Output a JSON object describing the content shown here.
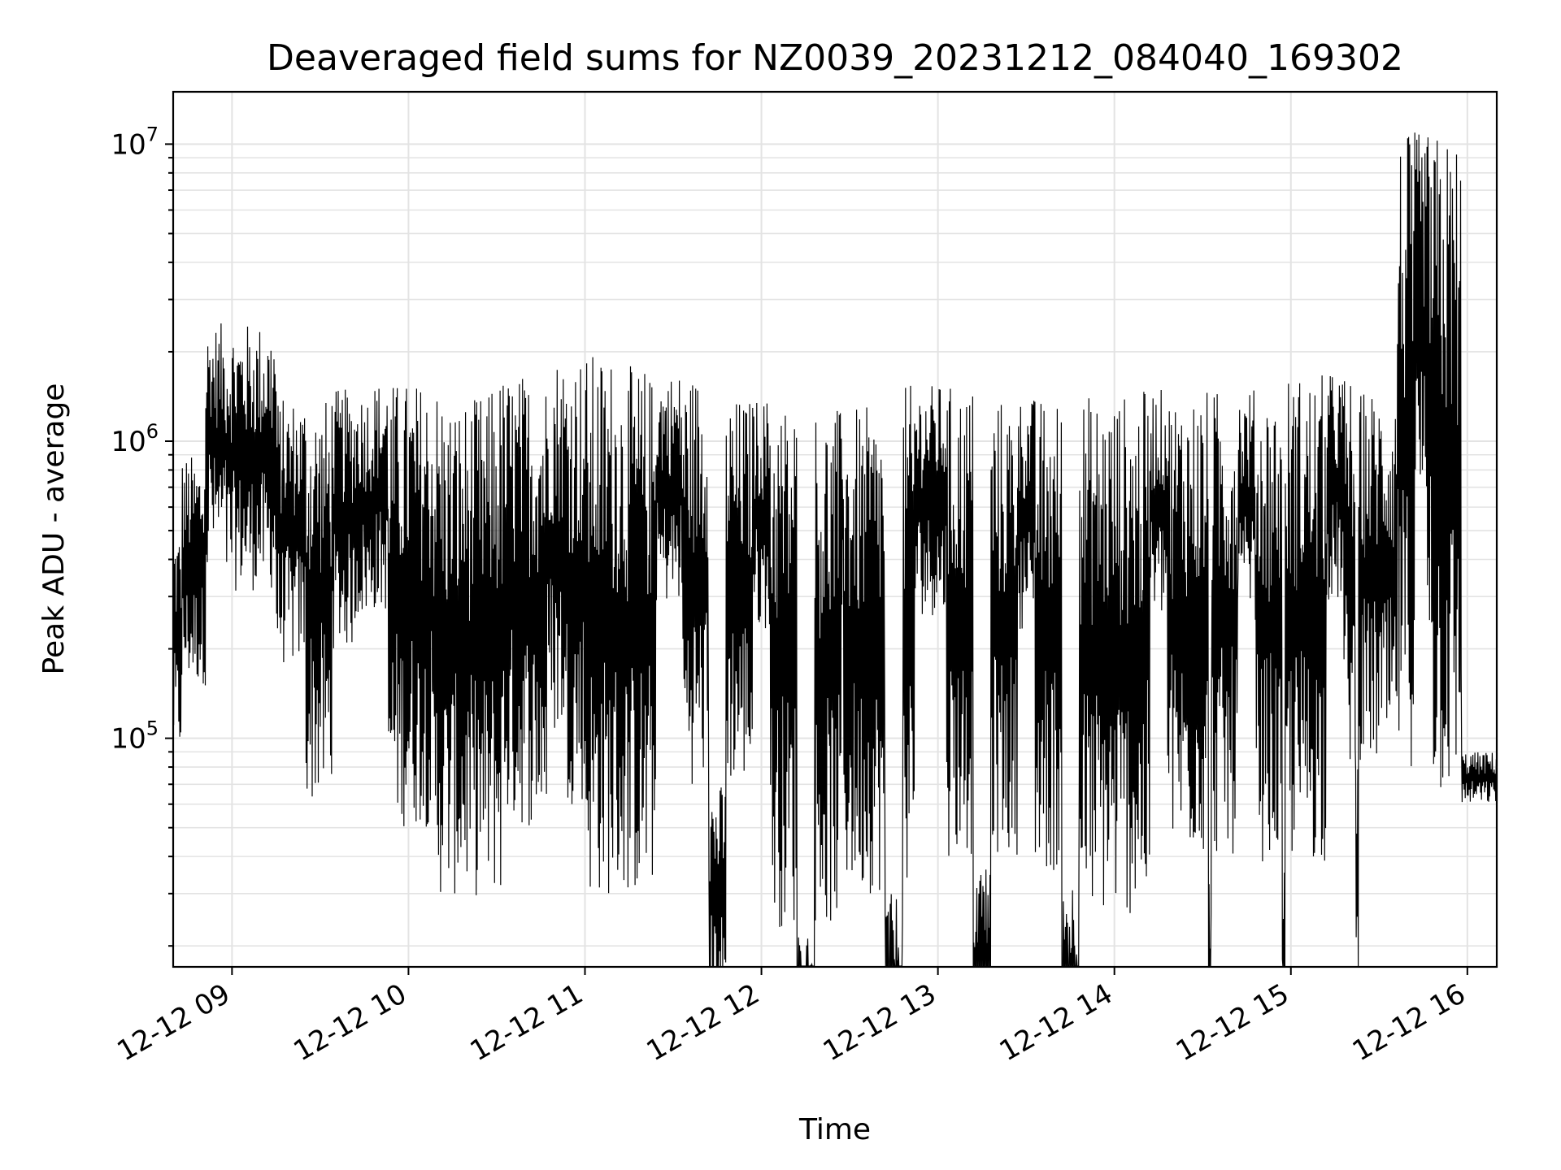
{
  "chart_data": {
    "type": "line",
    "title": "Deaveraged field sums for NZ0039_20231212_084040_169302",
    "xlabel": "Time",
    "ylabel": "Peak ADU - average",
    "yscale": "log",
    "ylim": [
      17000,
      15000000
    ],
    "xlim": [
      "2023-12-12 08:40",
      "2023-12-12 16:10"
    ],
    "grid": true,
    "line_color": "#000000",
    "x_tick_labels": [
      "12-12 09",
      "12-12 10",
      "12-12 11",
      "12-12 12",
      "12-12 13",
      "12-12 14",
      "12-12 15",
      "12-12 16"
    ],
    "x_tick_times": [
      "2023-12-12 09:00",
      "2023-12-12 10:00",
      "2023-12-12 11:00",
      "2023-12-12 12:00",
      "2023-12-12 13:00",
      "2023-12-12 14:00",
      "2023-12-12 15:00",
      "2023-12-12 16:00"
    ],
    "y_tick_labels": [
      {
        "value": 100000,
        "base": "10",
        "exp": "5"
      },
      {
        "value": 1000000,
        "base": "10",
        "exp": "6"
      },
      {
        "value": 10000000,
        "base": "10",
        "exp": "7"
      }
    ],
    "series": [
      {
        "points": [
          [
            "2023-12-12 08:40",
            320000
          ],
          [
            "2023-12-12 08:45",
            480000
          ],
          [
            "2023-12-12 08:50",
            520000
          ],
          [
            "2023-12-12 08:55",
            900000
          ],
          [
            "2023-12-12 09:00",
            800000
          ],
          [
            "2023-12-12 09:03",
            2500000
          ],
          [
            "2023-12-12 09:05",
            400000
          ],
          [
            "2023-12-12 09:10",
            300000
          ],
          [
            "2023-12-12 09:15",
            250000
          ],
          [
            "2023-12-12 09:20",
            180000
          ],
          [
            "2023-12-12 09:22",
            60000
          ],
          [
            "2023-12-12 09:25",
            1400000
          ],
          [
            "2023-12-12 09:30",
            200000
          ],
          [
            "2023-12-12 09:45",
            1500000
          ],
          [
            "2023-12-12 10:00",
            1600000
          ],
          [
            "2023-12-12 10:05",
            50000
          ],
          [
            "2023-12-12 10:20",
            1400000
          ],
          [
            "2023-12-12 10:20",
            29000
          ],
          [
            "2023-12-12 10:35",
            1450000
          ],
          [
            "2023-12-12 10:35",
            50000
          ],
          [
            "2023-12-12 10:40",
            1700000
          ],
          [
            "2023-12-12 10:45",
            100000
          ],
          [
            "2023-12-12 11:00",
            2000000
          ],
          [
            "2023-12-12 11:05",
            60000
          ],
          [
            "2023-12-12 11:10",
            1800000
          ],
          [
            "2023-12-12 11:12",
            29000
          ],
          [
            "2023-12-12 11:30",
            1700000
          ],
          [
            "2023-12-12 11:45",
            70000
          ],
          [
            "2023-12-12 12:00",
            1400000
          ],
          [
            "2023-12-12 12:15",
            23000
          ],
          [
            "2023-12-12 12:30",
            1300000
          ],
          [
            "2023-12-12 12:40",
            30000
          ],
          [
            "2023-12-12 13:00",
            1550000
          ],
          [
            "2023-12-12 13:15",
            40000
          ],
          [
            "2023-12-12 13:30",
            1400000
          ],
          [
            "2023-12-12 13:45",
            35000
          ],
          [
            "2023-12-12 14:00",
            1450000
          ],
          [
            "2023-12-12 14:00",
            25000
          ],
          [
            "2023-12-12 14:20",
            1500000
          ],
          [
            "2023-12-12 14:30",
            40000
          ],
          [
            "2023-12-12 14:45",
            1500000
          ],
          [
            "2023-12-12 15:00",
            38000
          ],
          [
            "2023-12-12 15:10",
            1700000
          ],
          [
            "2023-12-12 15:30",
            80000
          ],
          [
            "2023-12-12 15:35",
            1500000
          ],
          [
            "2023-12-12 15:45",
            500000
          ],
          [
            "2023-12-12 15:48",
            11000000
          ],
          [
            "2023-12-12 15:50",
            6000000
          ],
          [
            "2023-12-12 15:55",
            700000
          ],
          [
            "2023-12-12 15:58",
            200000
          ],
          [
            "2023-12-12 16:00",
            60000
          ],
          [
            "2023-12-12 16:05",
            70000
          ],
          [
            "2023-12-12 16:10",
            65000
          ]
        ]
      }
    ]
  }
}
